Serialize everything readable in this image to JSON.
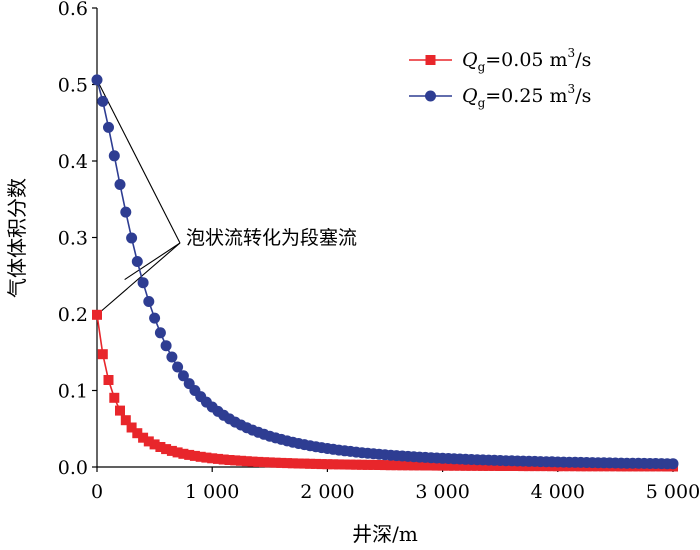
{
  "chart_data": {
    "type": "line",
    "title": "",
    "xlabel": "井深/m",
    "ylabel": "气体体积分数",
    "xlim": [
      0,
      5000
    ],
    "ylim": [
      0,
      0.6
    ],
    "xticks": [
      {
        "value": 0,
        "label": "0"
      },
      {
        "value": 1000,
        "label": "1 000"
      },
      {
        "value": 2000,
        "label": "2 000"
      },
      {
        "value": 3000,
        "label": "3 000"
      },
      {
        "value": 4000,
        "label": "4 000"
      },
      {
        "value": 5000,
        "label": "5 000"
      }
    ],
    "yticks": [
      {
        "value": 0,
        "label": "0.0"
      },
      {
        "value": 0.1,
        "label": "0.1"
      },
      {
        "value": 0.2,
        "label": "0.2"
      },
      {
        "value": 0.3,
        "label": "0.3"
      },
      {
        "value": 0.4,
        "label": "0.4"
      },
      {
        "value": 0.5,
        "label": "0.5"
      },
      {
        "value": 0.6,
        "label": "0.6"
      }
    ],
    "grid": false,
    "legend_position": "top-right",
    "series": [
      {
        "name": "Qg=0.05 m3/s",
        "legend": {
          "symbol": "Q",
          "subscript": "g",
          "value": "=0.05 m",
          "superscript": "3",
          "unit": "/s"
        },
        "color": "#e8262b",
        "marker": "square",
        "x0": 0,
        "y0": 0.199,
        "step": 50,
        "count": 101,
        "decay_a": 1e-05,
        "decay_b": 0.0065
      },
      {
        "name": "Qg=0.25 m3/s",
        "legend": {
          "symbol": "Q",
          "subscript": "g",
          "value": "=0.25 m",
          "superscript": "3",
          "unit": "/s"
        },
        "color": "#2e3d92",
        "marker": "circle",
        "x0": 0,
        "y0": 0.506,
        "step": 50,
        "count": 101,
        "decay_a": 4.5e-06,
        "decay_b": 0.00095
      }
    ],
    "annotation": {
      "text": "泡状流转化为段塞流",
      "targets": [
        {
          "x": 0,
          "y": 0.199
        },
        {
          "x": 0,
          "y": 0.506
        },
        {
          "x": 240,
          "y": 0.245
        }
      ]
    }
  }
}
